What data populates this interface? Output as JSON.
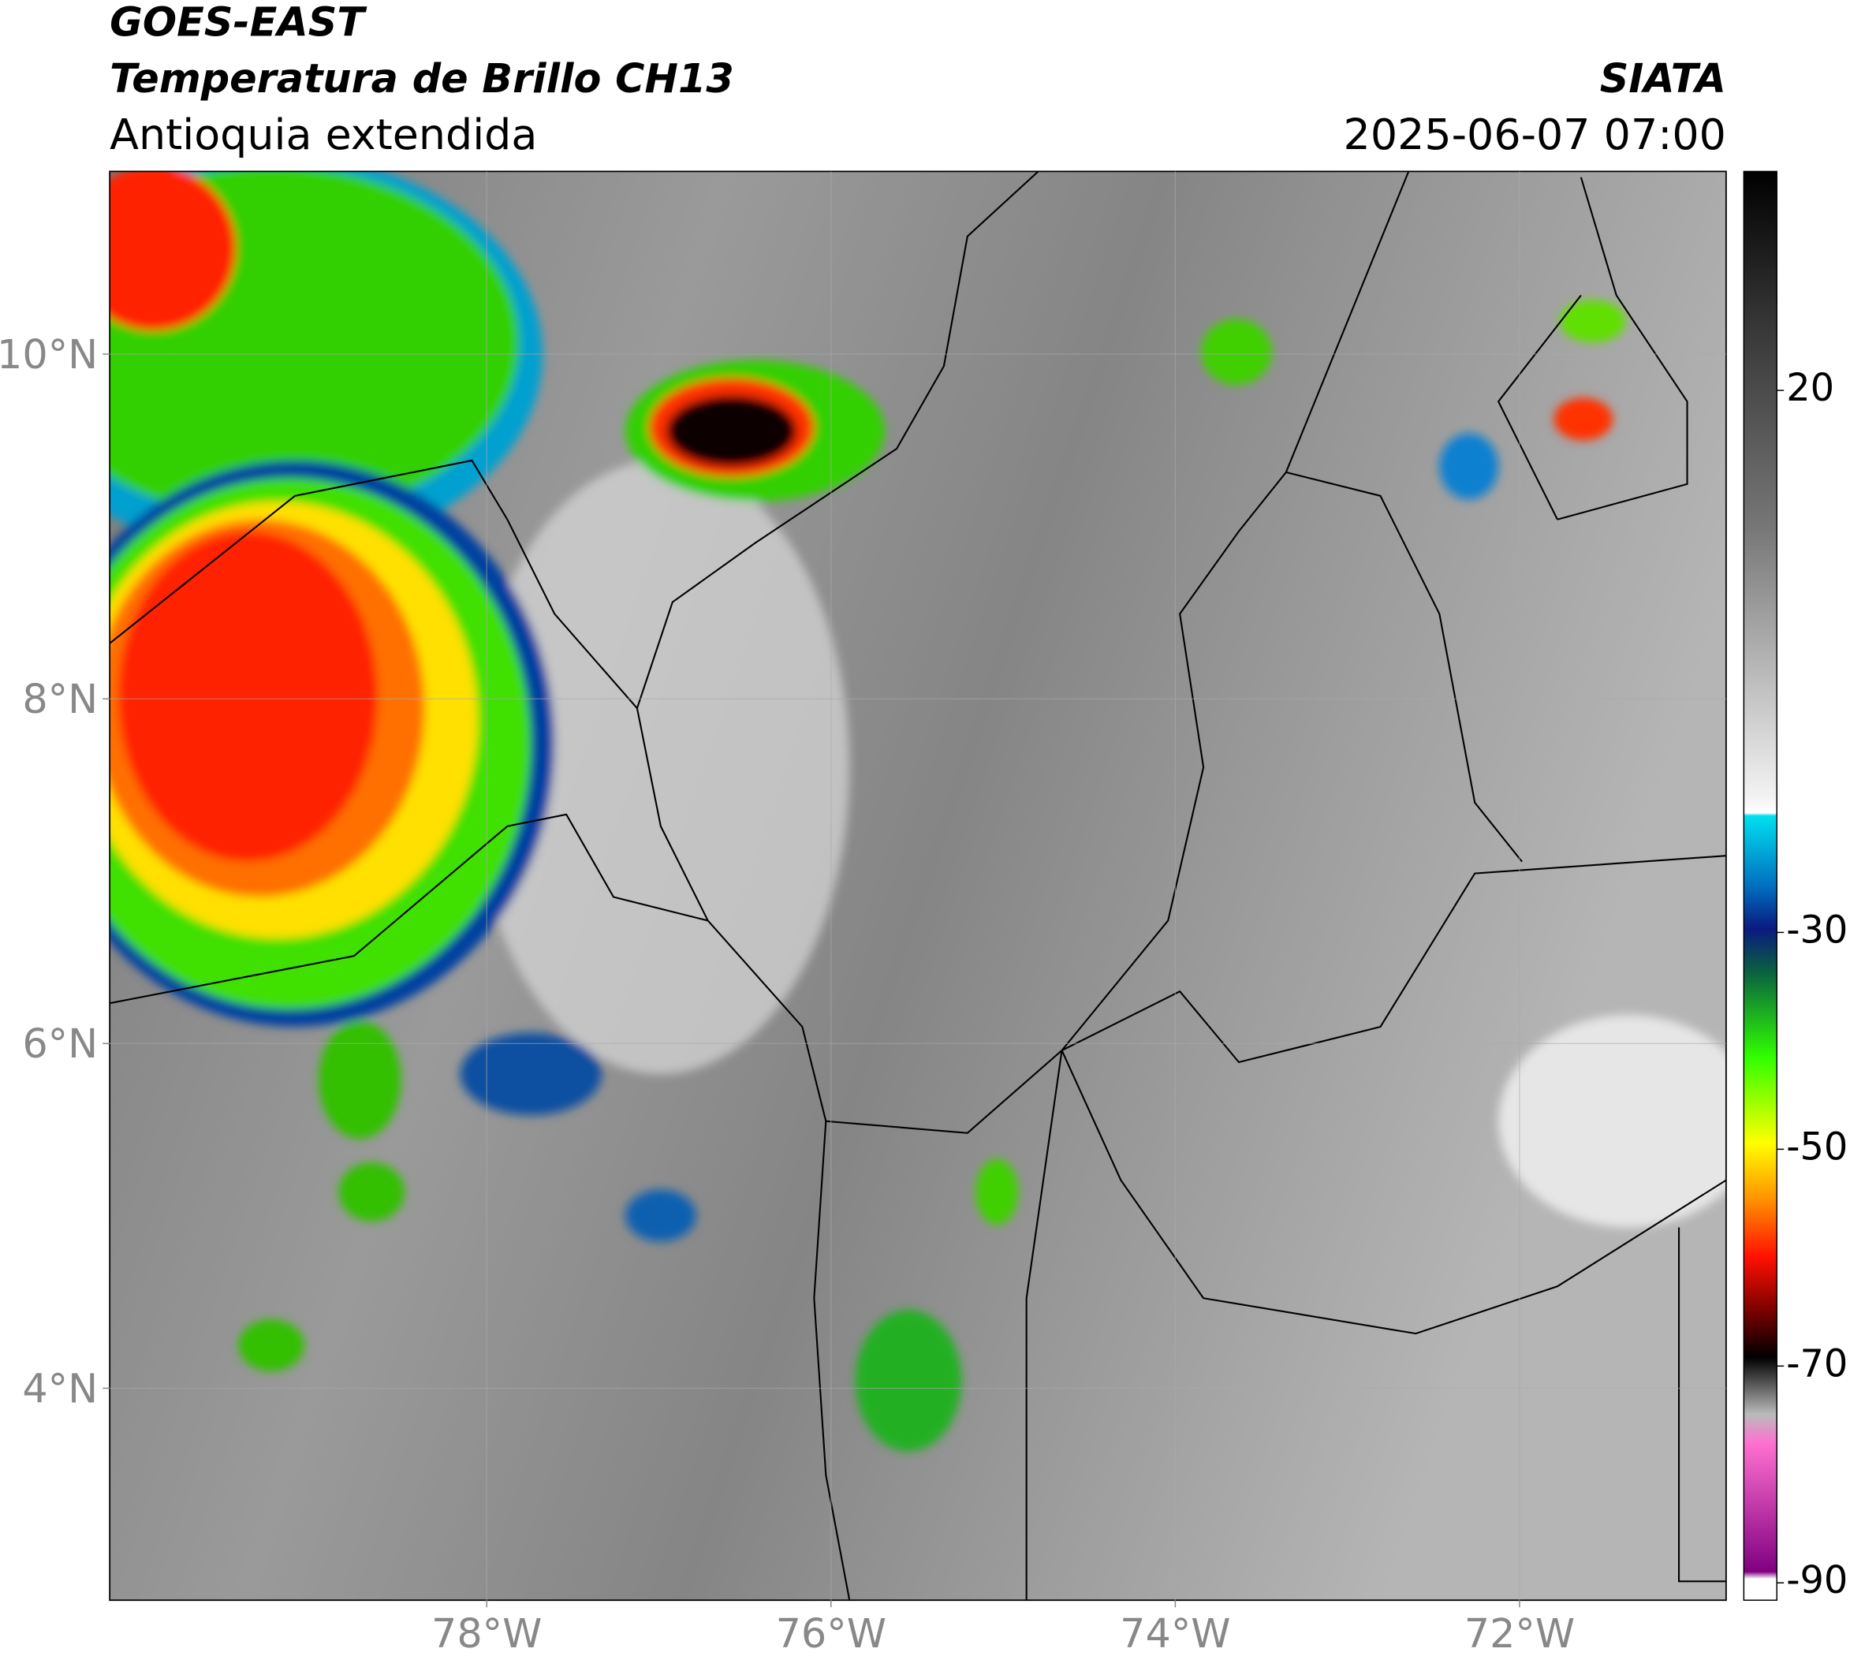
{
  "header": {
    "title": "GOES-EAST",
    "subtitle": "Temperatura de Brillo CH13",
    "region": "Antioquia extendida",
    "source": "SIATA",
    "datetime": "2025-06-07 07:00"
  },
  "map": {
    "xlim": [
      -80.19,
      -70.8
    ],
    "ylim": [
      2.77,
      11.06
    ],
    "xticks": [
      {
        "value": -78,
        "label": "78°W"
      },
      {
        "value": -76,
        "label": "76°W"
      },
      {
        "value": -74,
        "label": "74°W"
      },
      {
        "value": -72,
        "label": "72°W"
      }
    ],
    "yticks": [
      {
        "value": 10,
        "label": "10°N"
      },
      {
        "value": 8,
        "label": "8°N"
      },
      {
        "value": 6,
        "label": "6°N"
      },
      {
        "value": 4,
        "label": "4°N"
      }
    ],
    "grid": true
  },
  "colorbar": {
    "lim": [
      -91.6,
      40.2
    ],
    "ticks": [
      20,
      -30,
      -50,
      -70,
      -90
    ]
  }
}
